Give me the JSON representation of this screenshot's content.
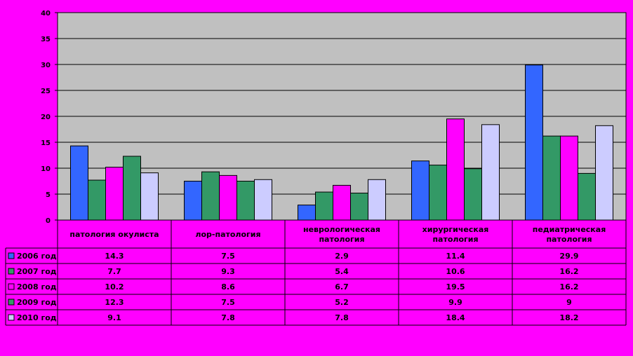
{
  "chart_data": {
    "type": "bar",
    "categories": [
      [
        "патология окулиста"
      ],
      [
        "лор-патология"
      ],
      [
        "неврологическая",
        "патология"
      ],
      [
        "хирургическая",
        "патология"
      ],
      [
        "педиатрическая",
        "патология"
      ]
    ],
    "series": [
      {
        "name": "2006 год",
        "color": "#3366ff",
        "values": [
          14.3,
          7.5,
          2.9,
          11.4,
          29.9
        ],
        "labels": [
          "14.3",
          "7.5",
          "2.9",
          "11.4",
          "29.9"
        ]
      },
      {
        "name": "2007 год",
        "color": "#339966",
        "values": [
          7.7,
          9.3,
          5.4,
          10.6,
          16.2
        ],
        "labels": [
          "7.7",
          "9.3",
          "5.4",
          "10.6",
          "16.2"
        ]
      },
      {
        "name": "2008 год",
        "color": "#ff00ff",
        "values": [
          10.2,
          8.6,
          6.7,
          19.5,
          16.2
        ],
        "labels": [
          "10.2",
          "8.6",
          "6.7",
          "19.5",
          "16.2"
        ]
      },
      {
        "name": "2009 год",
        "color": "#339966",
        "values": [
          12.3,
          7.5,
          5.2,
          9.9,
          9
        ],
        "labels": [
          "12.3",
          "7.5",
          "5.2",
          "9.9",
          "9"
        ]
      },
      {
        "name": "2010 год",
        "color": "#ccccff",
        "values": [
          9.1,
          7.8,
          7.8,
          18.4,
          18.2
        ],
        "labels": [
          "9.1",
          "7.8",
          "7.8",
          "18.4",
          "18.2"
        ]
      }
    ],
    "yticks": [
      "0",
      "5",
      "10",
      "15",
      "20",
      "25",
      "30",
      "35",
      "40"
    ],
    "ylim": [
      0,
      40
    ],
    "grid": true,
    "legend": "data-table-left",
    "plot_background": "#c0c0c0",
    "page_background": "#ff00ff"
  }
}
